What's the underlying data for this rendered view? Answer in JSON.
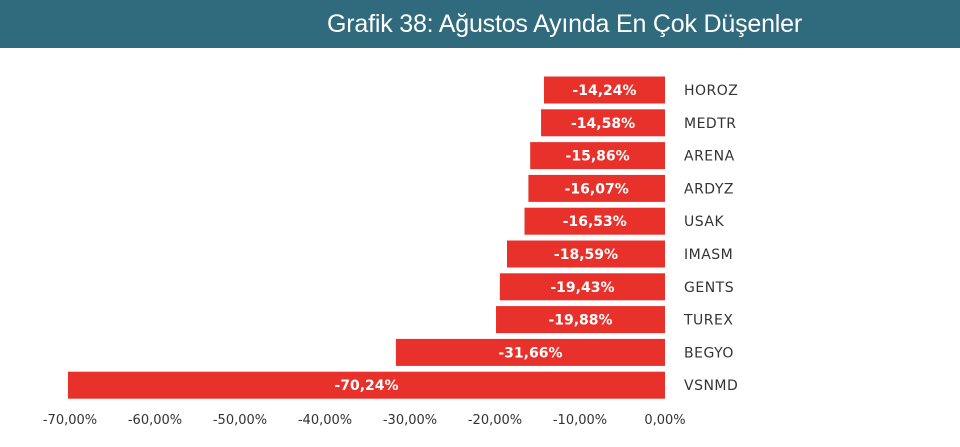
{
  "title": "Grafik 38: Ağustos Ayında En Çok Düşenler",
  "colors": {
    "bar": "#e8312a",
    "header_bg": "#2f6a7d",
    "header_text": "#ffffff",
    "bar_label": "#ffffff",
    "tick_text": "#333333",
    "category_text": "#333333"
  },
  "chart_data": {
    "type": "bar",
    "orientation": "horizontal",
    "title": "Grafik 38: Ağustos Ayında En Çok Düşenler",
    "xlabel": "",
    "ylabel": "",
    "xlim": [
      -70,
      0
    ],
    "grid": false,
    "legend": "none",
    "categories": [
      "HOROZ",
      "MEDTR",
      "ARENA",
      "ARDYZ",
      "USAK",
      "IMASM",
      "GENTS",
      "TUREX",
      "BEGYO",
      "VSNMD"
    ],
    "values": [
      -14.24,
      -14.58,
      -15.86,
      -16.07,
      -16.53,
      -18.59,
      -19.43,
      -19.88,
      -31.66,
      -70.24
    ],
    "data_labels": [
      "-14,24%",
      "-14,58%",
      "-15,86%",
      "-16,07%",
      "-16,53%",
      "-18,59%",
      "-19,43%",
      "-19,88%",
      "-31,66%",
      "-70,24%"
    ],
    "x_ticks": [
      -70,
      -60,
      -50,
      -40,
      -30,
      -20,
      -10,
      0
    ],
    "x_tick_labels": [
      "-70,00%",
      "-60,00%",
      "-50,00%",
      "-40,00%",
      "-30,00%",
      "-20,00%",
      "-10,00%",
      "0,00%"
    ]
  }
}
